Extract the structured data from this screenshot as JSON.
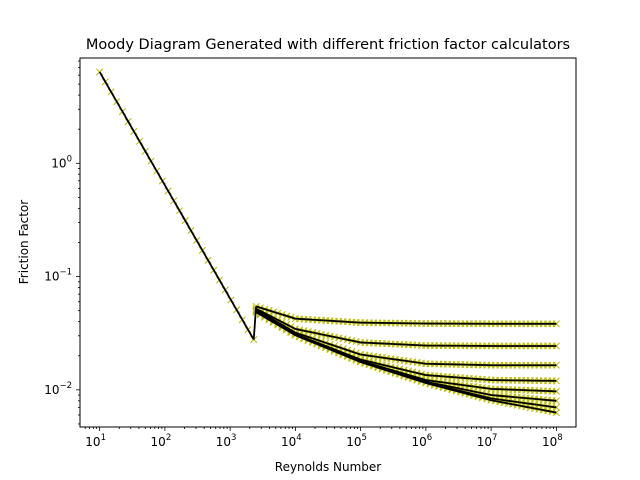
{
  "chart_data": {
    "type": "line",
    "title": "Moody Diagram Generated with different friction factor calculators",
    "xlabel": "Reynolds Number",
    "ylabel": "Friction Factor",
    "xscale": "log",
    "yscale": "log",
    "xlim": [
      5,
      200000000
    ],
    "ylim": [
      0.0047,
      8.5
    ],
    "grid": false,
    "legend": "none",
    "x_ticks": [
      {
        "base": "10",
        "exp": "1",
        "value": 10
      },
      {
        "base": "10",
        "exp": "2",
        "value": 100
      },
      {
        "base": "10",
        "exp": "3",
        "value": 1000
      },
      {
        "base": "10",
        "exp": "4",
        "value": 10000
      },
      {
        "base": "10",
        "exp": "5",
        "value": 100000
      },
      {
        "base": "10",
        "exp": "6",
        "value": 1000000
      },
      {
        "base": "10",
        "exp": "7",
        "value": 10000000
      },
      {
        "base": "10",
        "exp": "8",
        "value": 100000000
      }
    ],
    "y_ticks": [
      {
        "base": "10",
        "exp": "−2",
        "value": 0.01
      },
      {
        "base": "10",
        "exp": "−1",
        "value": 0.1
      },
      {
        "base": "10",
        "exp": "0",
        "value": 1
      }
    ],
    "colors": {
      "solid_lines": "#000000",
      "cross_markers": "#bfbf00"
    },
    "laminar": {
      "x": [
        10,
        2300
      ],
      "y": [
        6.4,
        0.0278
      ]
    },
    "series": [
      {
        "x": [
          2500,
          10000,
          100000,
          1000000,
          10000000,
          100000000
        ],
        "y": [
          0.0545,
          0.0425,
          0.0392,
          0.0385,
          0.0383,
          0.0383
        ]
      },
      {
        "x": [
          2500,
          10000,
          100000,
          1000000,
          10000000,
          100000000
        ],
        "y": [
          0.052,
          0.0345,
          0.0262,
          0.0246,
          0.0244,
          0.0244
        ]
      },
      {
        "x": [
          2500,
          10000,
          100000,
          1000000,
          10000000,
          100000000
        ],
        "y": [
          0.051,
          0.032,
          0.0205,
          0.017,
          0.0165,
          0.0165
        ]
      },
      {
        "x": [
          2500,
          10000,
          100000,
          1000000,
          10000000,
          100000000
        ],
        "y": [
          0.05,
          0.031,
          0.0185,
          0.0135,
          0.0122,
          0.012
        ]
      },
      {
        "x": [
          2500,
          10000,
          100000,
          1000000,
          10000000,
          100000000
        ],
        "y": [
          0.0495,
          0.0308,
          0.018,
          0.0122,
          0.0102,
          0.0097
        ]
      },
      {
        "x": [
          2500,
          10000,
          100000,
          1000000,
          10000000,
          100000000
        ],
        "y": [
          0.049,
          0.0306,
          0.0178,
          0.0118,
          0.009,
          0.008
        ]
      },
      {
        "x": [
          2500,
          10000,
          100000,
          1000000,
          10000000,
          100000000
        ],
        "y": [
          0.0487,
          0.0305,
          0.0177,
          0.0116,
          0.0084,
          0.007
        ]
      },
      {
        "x": [
          2500,
          10000,
          100000,
          1000000,
          10000000,
          100000000
        ],
        "y": [
          0.0485,
          0.0304,
          0.0176,
          0.0115,
          0.0081,
          0.0063
        ]
      }
    ]
  }
}
